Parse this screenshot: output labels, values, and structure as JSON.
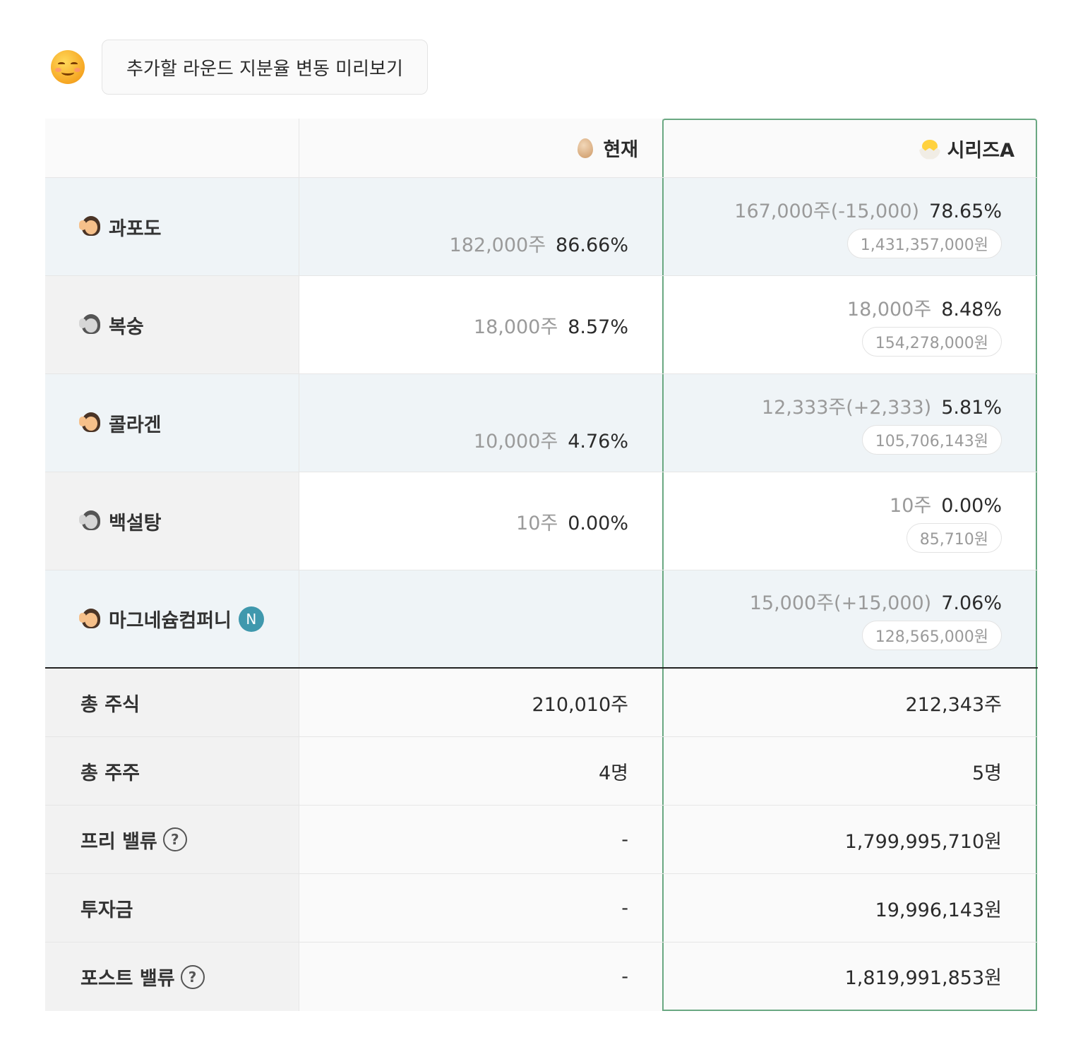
{
  "header_button": "추가할 라운드 지분율 변동 미리보기",
  "columns": {
    "current": "현재",
    "series_a": "시리즈A"
  },
  "shareholders": [
    {
      "name": "과포도",
      "current_shares": "182,000주",
      "current_pct": "86.66%",
      "a_shares": "167,000주(-15,000)",
      "a_pct": "78.65%",
      "a_value": "1,431,357,000원"
    },
    {
      "name": "복숭",
      "current_shares": "18,000주",
      "current_pct": "8.57%",
      "a_shares": "18,000주",
      "a_pct": "8.48%",
      "a_value": "154,278,000원"
    },
    {
      "name": "콜라겐",
      "current_shares": "10,000주",
      "current_pct": "4.76%",
      "a_shares": "12,333주(+2,333)",
      "a_pct": "5.81%",
      "a_value": "105,706,143원"
    },
    {
      "name": "백설탕",
      "current_shares": "10주",
      "current_pct": "0.00%",
      "a_shares": "10주",
      "a_pct": "0.00%",
      "a_value": "85,710원"
    },
    {
      "name": "마그네슘컴퍼니",
      "badge": "N",
      "a_shares": "15,000주(+15,000)",
      "a_pct": "7.06%",
      "a_value": "128,565,000원"
    }
  ],
  "totals": {
    "total_shares": {
      "label": "총 주식",
      "current": "210,010주",
      "series_a": "212,343주"
    },
    "total_holders": {
      "label": "총 주주",
      "current": "4명",
      "series_a": "5명"
    },
    "pre_value": {
      "label": "프리 밸류",
      "current": "-",
      "series_a": "1,799,995,710원"
    },
    "investment": {
      "label": "투자금",
      "current": "-",
      "series_a": "19,996,143원"
    },
    "post_value": {
      "label": "포스트 밸류",
      "current": "-",
      "series_a": "1,819,991,853원"
    }
  },
  "icons": {
    "smiley": "smiling-face-icon",
    "current": "egg-icon",
    "series_a": "hatching-chick-icon",
    "help": "question-circle-icon"
  },
  "colors": {
    "accent_border": "#6aa882",
    "row_shade": "#eff4f7",
    "new_badge": "#3f98ad"
  }
}
